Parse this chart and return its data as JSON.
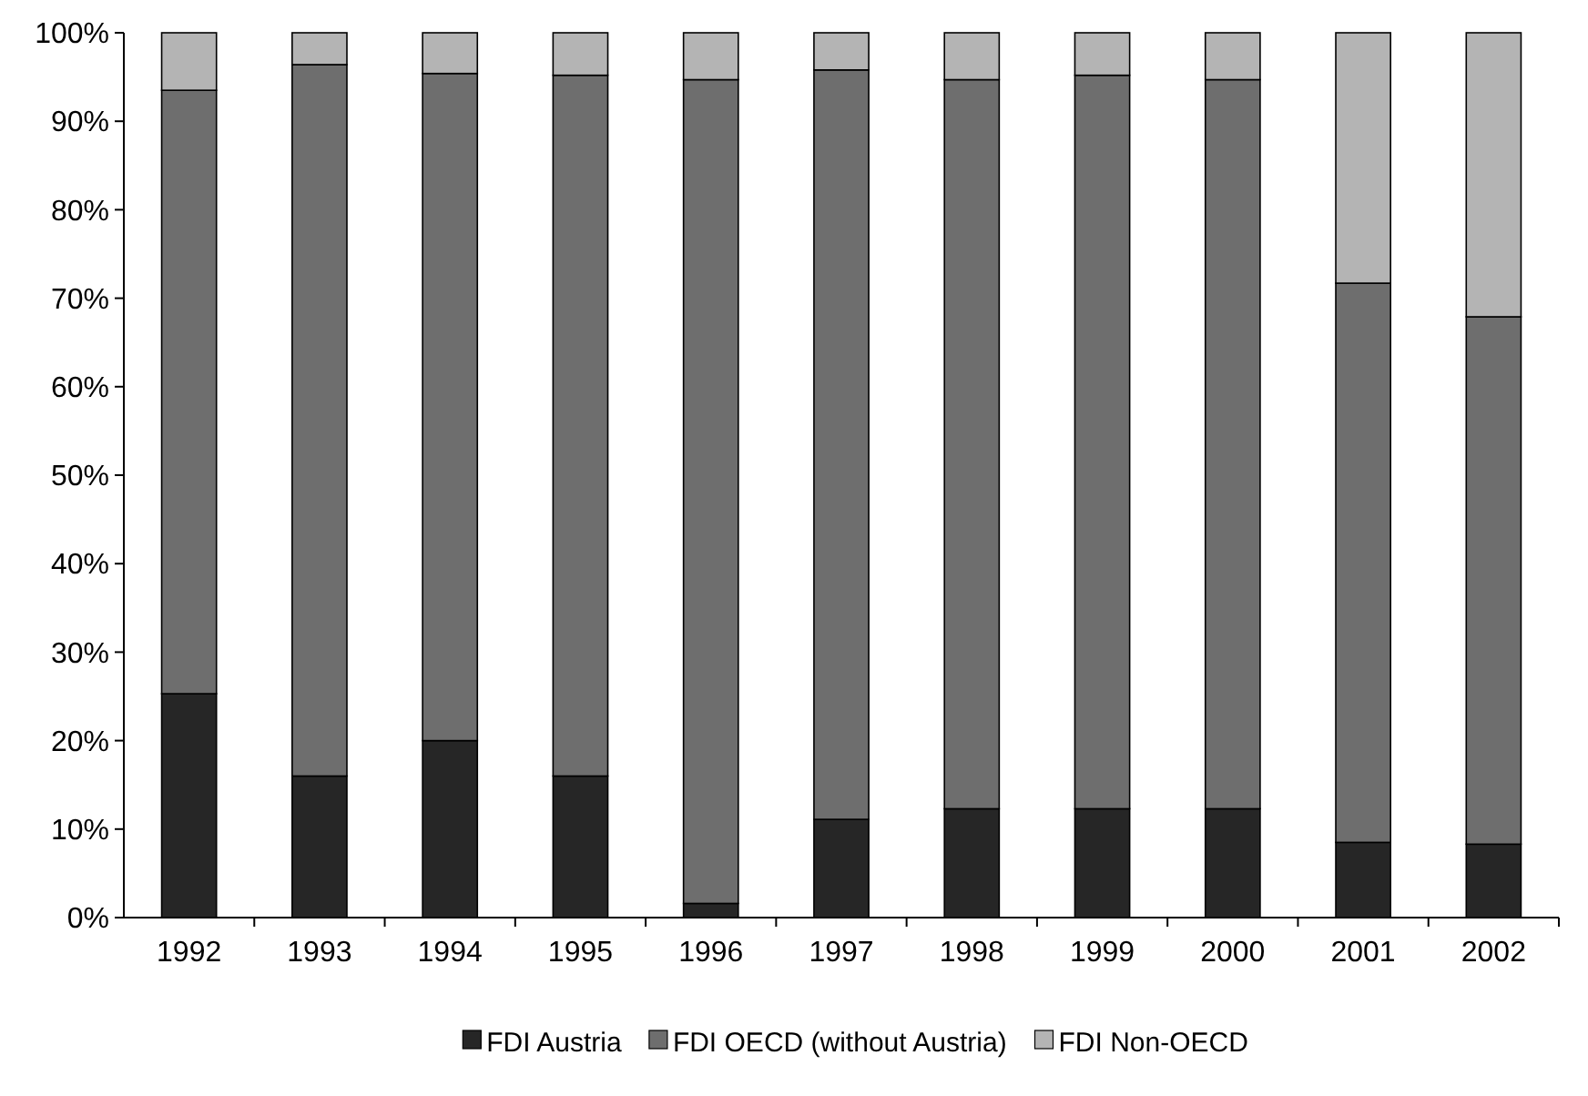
{
  "chart_data": {
    "type": "bar",
    "stacked": true,
    "categories": [
      "1992",
      "1993",
      "1994",
      "1995",
      "1996",
      "1997",
      "1998",
      "1999",
      "2000",
      "2001",
      "2002"
    ],
    "series": [
      {
        "name": "FDI Austria",
        "color": "#262626",
        "values": [
          25.3,
          16,
          20,
          16,
          1.6,
          11.1,
          12.3,
          12.3,
          12.3,
          8.5,
          8.3
        ]
      },
      {
        "name": "FDI OECD (without Austria)",
        "color": "#6e6e6e",
        "values": [
          68.2,
          80.4,
          75.4,
          79.2,
          93.1,
          84.7,
          82.4,
          82.9,
          82.4,
          63.2,
          59.6
        ]
      },
      {
        "name": "FDI Non-OECD",
        "color": "#b4b4b4",
        "values": [
          6.5,
          3.6,
          4.6,
          4.8,
          5.3,
          4.2,
          5.3,
          4.8,
          5.3,
          28.3,
          32.1
        ]
      }
    ],
    "ylim": [
      0,
      100
    ],
    "yticks": [
      {
        "value": 0,
        "label": "0%"
      },
      {
        "value": 10,
        "label": "10%"
      },
      {
        "value": 20,
        "label": "20%"
      },
      {
        "value": 30,
        "label": "30%"
      },
      {
        "value": 40,
        "label": "40%"
      },
      {
        "value": 50,
        "label": "50%"
      },
      {
        "value": 60,
        "label": "60%"
      },
      {
        "value": 70,
        "label": "70%"
      },
      {
        "value": 80,
        "label": "80%"
      },
      {
        "value": 90,
        "label": "90%"
      },
      {
        "value": 100,
        "label": "100%"
      }
    ],
    "grid": false,
    "legend": "bottom"
  }
}
